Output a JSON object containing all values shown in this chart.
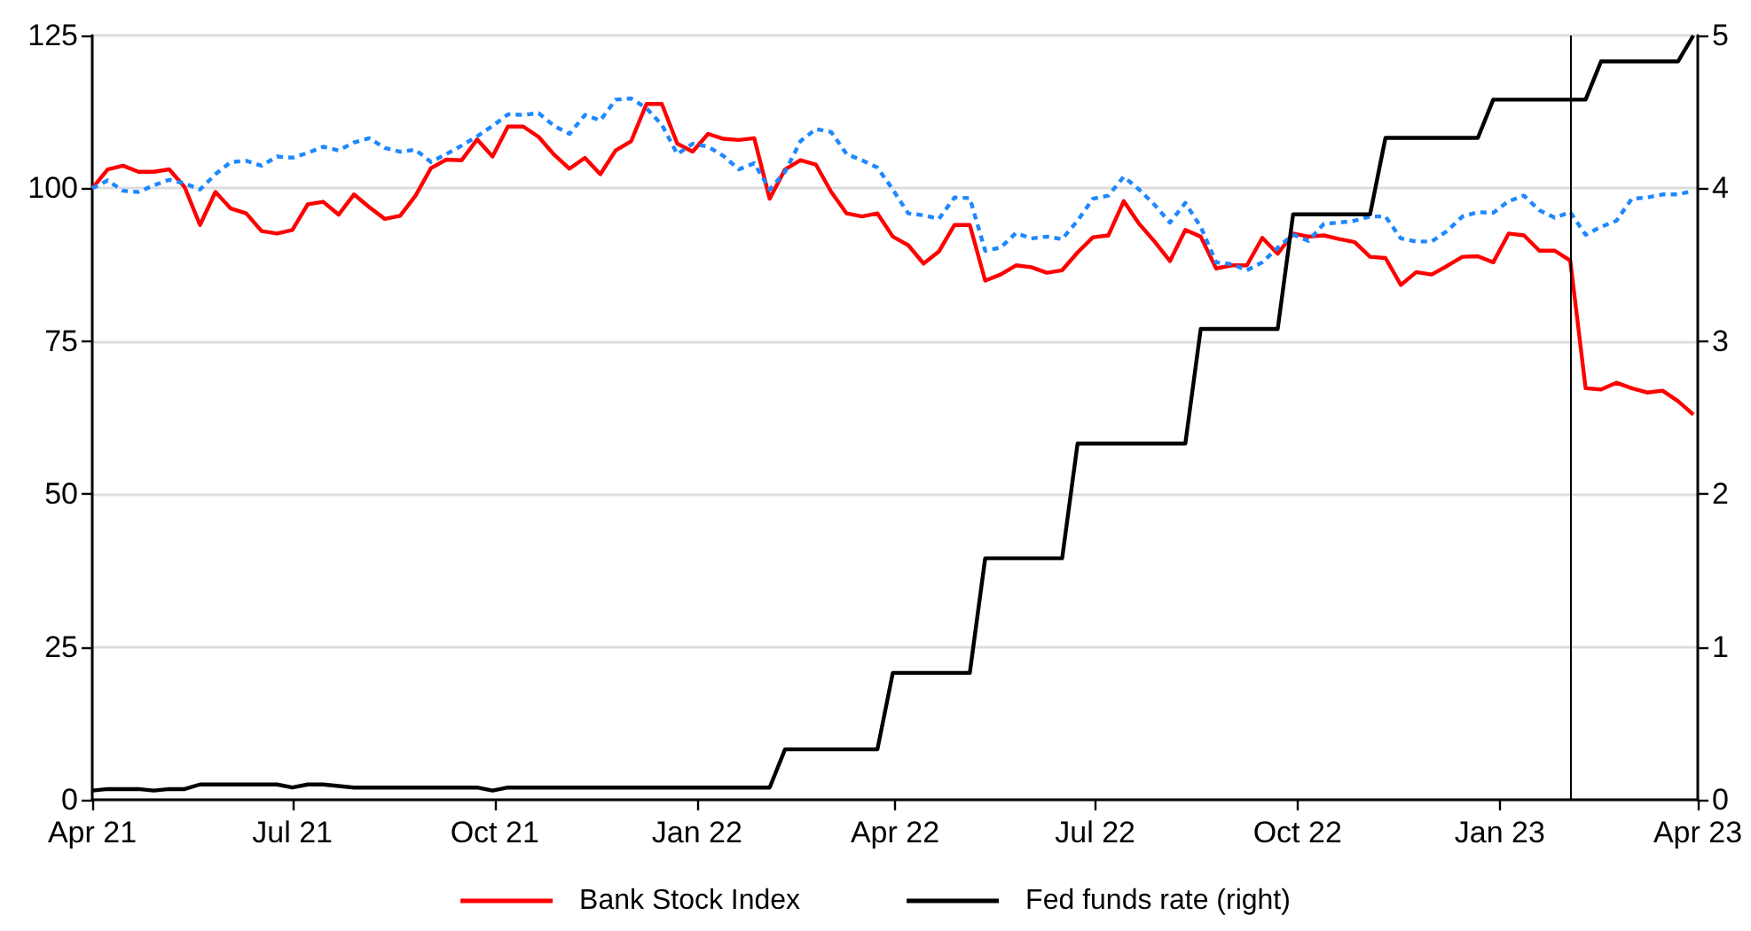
{
  "chart_data": {
    "type": "line",
    "x": [
      "2021-04-01",
      "2021-04-08",
      "2021-04-15",
      "2021-04-22",
      "2021-04-29",
      "2021-05-06",
      "2021-05-13",
      "2021-05-20",
      "2021-05-27",
      "2021-06-03",
      "2021-06-10",
      "2021-06-17",
      "2021-06-24",
      "2021-07-01",
      "2021-07-08",
      "2021-07-15",
      "2021-07-22",
      "2021-07-29",
      "2021-08-05",
      "2021-08-12",
      "2021-08-19",
      "2021-08-26",
      "2021-09-02",
      "2021-09-09",
      "2021-09-16",
      "2021-09-23",
      "2021-09-30",
      "2021-10-07",
      "2021-10-14",
      "2021-10-21",
      "2021-10-28",
      "2021-11-04",
      "2021-11-11",
      "2021-11-18",
      "2021-11-25",
      "2021-12-02",
      "2021-12-09",
      "2021-12-16",
      "2021-12-23",
      "2021-12-30",
      "2022-01-06",
      "2022-01-13",
      "2022-01-20",
      "2022-01-27",
      "2022-02-03",
      "2022-02-10",
      "2022-02-17",
      "2022-02-24",
      "2022-03-03",
      "2022-03-10",
      "2022-03-17",
      "2022-03-24",
      "2022-03-31",
      "2022-04-07",
      "2022-04-14",
      "2022-04-21",
      "2022-04-28",
      "2022-05-05",
      "2022-05-12",
      "2022-05-19",
      "2022-05-26",
      "2022-06-02",
      "2022-06-09",
      "2022-06-16",
      "2022-06-23",
      "2022-06-30",
      "2022-07-07",
      "2022-07-14",
      "2022-07-21",
      "2022-07-28",
      "2022-08-04",
      "2022-08-11",
      "2022-08-18",
      "2022-08-25",
      "2022-09-01",
      "2022-09-08",
      "2022-09-15",
      "2022-09-22",
      "2022-09-29",
      "2022-10-06",
      "2022-10-13",
      "2022-10-20",
      "2022-10-27",
      "2022-11-03",
      "2022-11-10",
      "2022-11-17",
      "2022-11-24",
      "2022-12-01",
      "2022-12-08",
      "2022-12-15",
      "2022-12-22",
      "2022-12-29",
      "2023-01-05",
      "2023-01-12",
      "2023-01-19",
      "2023-01-26",
      "2023-02-02",
      "2023-02-09",
      "2023-02-16",
      "2023-02-23",
      "2023-03-02",
      "2023-03-09",
      "2023-03-16",
      "2023-03-23",
      "2023-03-30"
    ],
    "series": [
      {
        "name": "Bank Stock Index",
        "color": "#ff0000",
        "line_style": "solid",
        "values": [
          100,
          103.1,
          103.7,
          102.7,
          102.7,
          103.1,
          100.2,
          94.0,
          99.4,
          96.7,
          95.9,
          93.0,
          92.6,
          93.2,
          97.4,
          97.8,
          95.7,
          99.0,
          96.9,
          95.0,
          95.5,
          98.8,
          103.3,
          104.7,
          104.6,
          108.0,
          105.2,
          110.1,
          110.1,
          108.4,
          105.5,
          103.2,
          105.0,
          102.3,
          106.2,
          107.7,
          113.8,
          113.8,
          107.3,
          106.0,
          108.9,
          108.1,
          107.9,
          108.2,
          98.3,
          103.1,
          104.6,
          103.9,
          99.4,
          95.9,
          95.4,
          95.9,
          92.1,
          90.7,
          87.7,
          89.7,
          94.0,
          94.0,
          84.9,
          85.9,
          87.4,
          87.1,
          86.2,
          86.6,
          89.5,
          92.0,
          92.3,
          97.9,
          94.2,
          91.3,
          88.1,
          93.2,
          92.1,
          86.9,
          87.4,
          87.4,
          91.9,
          89.3,
          92.6,
          92.1,
          92.3,
          91.7,
          91.2,
          88.8,
          88.6,
          84.2,
          86.3,
          85.9,
          87.3,
          88.8,
          88.9,
          87.9,
          92.6,
          92.3,
          89.8,
          89.8,
          88.2,
          67.3,
          67.1,
          68.2,
          67.3,
          66.6,
          66.9,
          65.2,
          63.0
        ]
      },
      {
        "color": "#1e88ff",
        "line_style": "dotted",
        "values": [
          100,
          101.3,
          99.6,
          99.4,
          100.5,
          101.4,
          100.8,
          99.8,
          102.3,
          104.3,
          104.5,
          103.7,
          105.2,
          105.0,
          105.8,
          106.8,
          106.2,
          107.5,
          108.2,
          106.6,
          106.0,
          106.3,
          104.3,
          105.6,
          107.0,
          108.5,
          110.2,
          112.1,
          112.0,
          112.3,
          110.2,
          108.9,
          112.0,
          111.1,
          114.5,
          114.7,
          113.1,
          110.4,
          105.6,
          107.3,
          106.8,
          105.3,
          103.1,
          104.1,
          99.8,
          102.7,
          107.7,
          109.7,
          109.2,
          105.6,
          104.6,
          103.4,
          99.8,
          95.9,
          95.6,
          95.0,
          98.5,
          98.4,
          89.8,
          90.3,
          92.7,
          91.8,
          92.1,
          91.7,
          94.7,
          98.3,
          98.8,
          101.9,
          99.8,
          97.3,
          94.4,
          97.6,
          93.7,
          87.9,
          87.6,
          86.6,
          87.9,
          90.3,
          92.4,
          91.4,
          94.2,
          94.4,
          94.7,
          95.4,
          95.4,
          91.8,
          91.3,
          91.3,
          93.0,
          95.4,
          96.1,
          96.0,
          97.9,
          98.8,
          96.4,
          95.2,
          96.1,
          92.4,
          93.7,
          94.7,
          98.3,
          98.5,
          99.0,
          99.0,
          99.6
        ]
      },
      {
        "name": "Fed funds rate (right)",
        "color": "#000000",
        "line_style": "solid",
        "axis": "y2",
        "values": [
          0.06,
          0.07,
          0.07,
          0.07,
          0.06,
          0.07,
          0.07,
          0.1,
          0.1,
          0.1,
          0.1,
          0.1,
          0.1,
          0.08,
          0.1,
          0.1,
          0.09,
          0.08,
          0.08,
          0.08,
          0.08,
          0.08,
          0.08,
          0.08,
          0.08,
          0.08,
          0.06,
          0.08,
          0.08,
          0.08,
          0.08,
          0.08,
          0.08,
          0.08,
          0.08,
          0.08,
          0.08,
          0.08,
          0.08,
          0.08,
          0.08,
          0.08,
          0.08,
          0.08,
          0.08,
          0.33,
          0.33,
          0.33,
          0.33,
          0.33,
          0.33,
          0.33,
          0.83,
          0.83,
          0.83,
          0.83,
          0.83,
          0.83,
          1.58,
          1.58,
          1.58,
          1.58,
          1.58,
          1.58,
          2.33,
          2.33,
          2.33,
          2.33,
          2.33,
          2.33,
          2.33,
          2.33,
          3.08,
          3.08,
          3.08,
          3.08,
          3.08,
          3.08,
          3.83,
          3.83,
          3.83,
          3.83,
          3.83,
          3.83,
          4.33,
          4.33,
          4.33,
          4.33,
          4.33,
          4.33,
          4.33,
          4.58,
          4.58,
          4.58,
          4.58,
          4.58,
          4.58,
          4.58,
          4.83,
          4.83,
          4.83,
          4.83,
          4.83,
          4.83,
          5
        ]
      }
    ],
    "xlim": [
      "2021-04-01",
      "2023-04-01"
    ],
    "xticks": [
      {
        "value": "2021-04-01",
        "label": "Apr 21"
      },
      {
        "value": "2021-07-01",
        "label": "Jul 21"
      },
      {
        "value": "2021-10-01",
        "label": "Oct 21"
      },
      {
        "value": "2022-01-01",
        "label": "Jan 22"
      },
      {
        "value": "2022-04-01",
        "label": "Apr 22"
      },
      {
        "value": "2022-07-01",
        "label": "Jul 22"
      },
      {
        "value": "2022-10-01",
        "label": "Oct 22"
      },
      {
        "value": "2023-01-01",
        "label": "Jan 23"
      },
      {
        "value": "2023-04-01",
        "label": "Apr 23"
      }
    ],
    "ylim": [
      0,
      125
    ],
    "yticks": [
      0,
      25,
      50,
      75,
      100,
      125
    ],
    "y2lim": [
      0,
      5
    ],
    "y2ticks": [
      0,
      1,
      2,
      3,
      4,
      5
    ],
    "ref_lines": [
      {
        "axis": "x",
        "value": "2023-02-02",
        "color": "#000000"
      }
    ],
    "grid": "y",
    "legend": "bottom",
    "marker": "none"
  }
}
